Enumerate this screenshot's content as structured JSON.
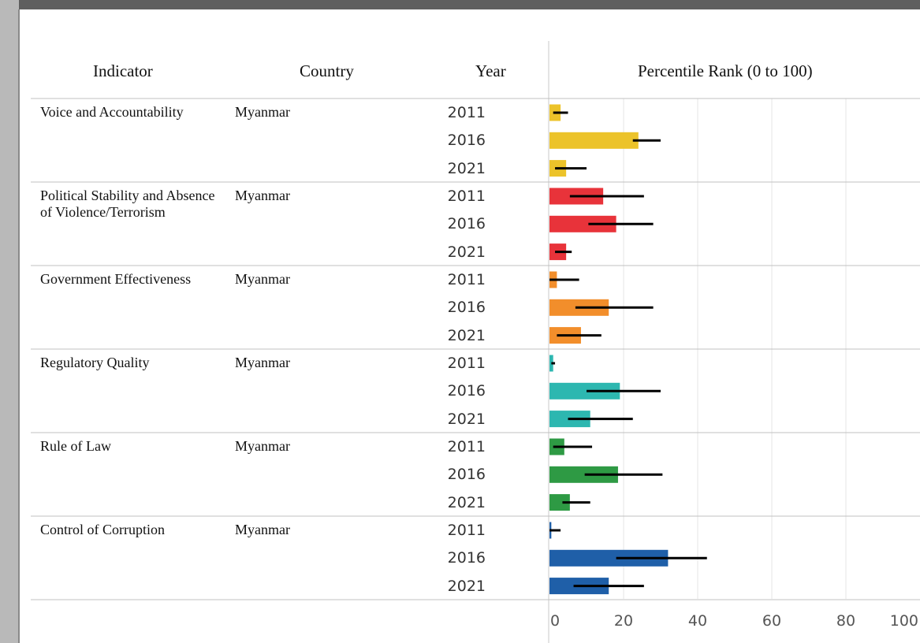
{
  "headers": {
    "indicator": "Indicator",
    "country": "Country",
    "year": "Year",
    "chart": "Percentile Rank (0 to 100)"
  },
  "rows": [
    {
      "indicator": "Voice and Accountability",
      "country": "Myanmar",
      "color": "#ecc32a"
    },
    {
      "indicator": "Political Stability and Absence of Violence/Terrorism",
      "country": "Myanmar",
      "color": "#e8333a"
    },
    {
      "indicator": "Government Effectiveness",
      "country": "Myanmar",
      "color": "#f28e2b"
    },
    {
      "indicator": "Regulatory Quality",
      "country": "Myanmar",
      "color": "#2db7b0"
    },
    {
      "indicator": "Rule of Law",
      "country": "Myanmar",
      "color": "#2e9a44"
    },
    {
      "indicator": "Control of Corruption",
      "country": "Myanmar",
      "color": "#1f5fa8"
    }
  ],
  "chart_data": {
    "type": "bar",
    "orientation": "horizontal",
    "title": "Percentile Rank (0 to 100)",
    "xlim": [
      0,
      100
    ],
    "x_ticks": [
      "0",
      "20",
      "40",
      "60",
      "80",
      "100"
    ],
    "grid": true,
    "years": [
      "2011",
      "2016",
      "2021"
    ],
    "series": [
      {
        "indicator": "Voice and Accountability",
        "values": [
          3,
          24,
          4.5
        ],
        "ci_low": [
          1,
          22.5,
          1.5
        ],
        "ci_high": [
          5,
          30,
          10
        ]
      },
      {
        "indicator": "Political Stability and Absence of Violence/Terrorism",
        "values": [
          14.5,
          18,
          4.5
        ],
        "ci_low": [
          5.5,
          10.5,
          1.5
        ],
        "ci_high": [
          25.5,
          28,
          6
        ]
      },
      {
        "indicator": "Government Effectiveness",
        "values": [
          2,
          16,
          8.5
        ],
        "ci_low": [
          0,
          7,
          2
        ],
        "ci_high": [
          8,
          28,
          14
        ]
      },
      {
        "indicator": "Regulatory Quality",
        "values": [
          1,
          19,
          11
        ],
        "ci_low": [
          0.5,
          10,
          5
        ],
        "ci_high": [
          1.5,
          30,
          22.5
        ]
      },
      {
        "indicator": "Rule of Law",
        "values": [
          4,
          18.5,
          5.5
        ],
        "ci_low": [
          1,
          9.5,
          3.5
        ],
        "ci_high": [
          11.5,
          30.5,
          11
        ]
      },
      {
        "indicator": "Control of Corruption",
        "values": [
          0.5,
          32,
          16
        ],
        "ci_low": [
          0,
          18,
          6.5
        ],
        "ci_high": [
          3,
          42.5,
          25.5
        ]
      }
    ]
  }
}
